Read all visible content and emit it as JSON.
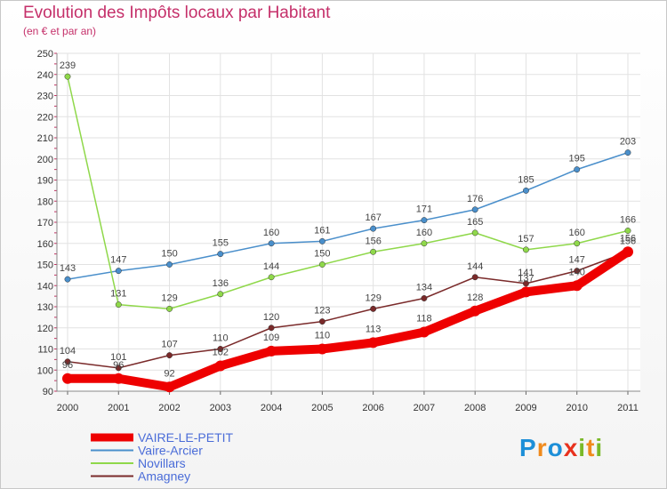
{
  "title": "Evolution des Impôts locaux par Habitant",
  "subtitle": "(en € et par an)",
  "logo": {
    "text": "Proxiti",
    "letters": [
      "P",
      "r",
      "o",
      "x",
      "i",
      "t",
      "i"
    ],
    "colors": [
      "#1d8fd8",
      "#f08a1c",
      "#1d8fd8",
      "#e8321e",
      "#7ab929",
      "#f08a1c",
      "#7ab929"
    ]
  },
  "chart_data": {
    "type": "line",
    "x": [
      "2000",
      "2001",
      "2002",
      "2003",
      "2004",
      "2005",
      "2006",
      "2007",
      "2008",
      "2009",
      "2010",
      "2011"
    ],
    "ylim": [
      90,
      250
    ],
    "yticks": [
      90,
      100,
      110,
      120,
      130,
      140,
      150,
      160,
      170,
      180,
      190,
      200,
      210,
      220,
      230,
      240,
      250
    ],
    "grid": true,
    "legend_position": "bottom-left",
    "series": [
      {
        "name": "VAIRE-LE-PETIT",
        "color": "#ee0000",
        "values": [
          96,
          96,
          92,
          102,
          109,
          110,
          113,
          118,
          128,
          137,
          140,
          156
        ]
      },
      {
        "name": "Vaire-Arcier",
        "color": "#4a8fcb",
        "values": [
          143,
          147,
          150,
          155,
          160,
          161,
          167,
          171,
          176,
          185,
          195,
          203
        ]
      },
      {
        "name": "Novillars",
        "color": "#8fd84a",
        "values": [
          239,
          131,
          129,
          136,
          144,
          150,
          156,
          160,
          165,
          157,
          160,
          166
        ]
      },
      {
        "name": "Amagney",
        "color": "#7a2a2a",
        "values": [
          104,
          101,
          107,
          110,
          120,
          123,
          129,
          134,
          144,
          141,
          147,
          156
        ]
      }
    ]
  }
}
